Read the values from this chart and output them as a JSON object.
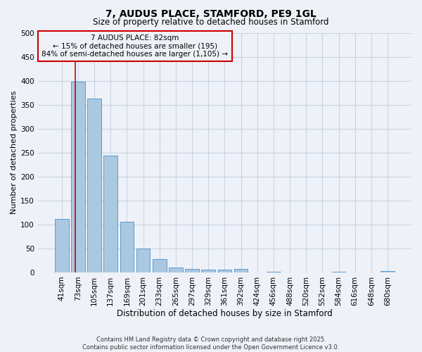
{
  "title": "7, AUDUS PLACE, STAMFORD, PE9 1GL",
  "subtitle": "Size of property relative to detached houses in Stamford",
  "xlabel": "Distribution of detached houses by size in Stamford",
  "ylabel": "Number of detached properties",
  "footer_line1": "Contains HM Land Registry data © Crown copyright and database right 2025.",
  "footer_line2": "Contains public sector information licensed under the Open Government Licence v3.0.",
  "categories": [
    "41sqm",
    "73sqm",
    "105sqm",
    "137sqm",
    "169sqm",
    "201sqm",
    "233sqm",
    "265sqm",
    "297sqm",
    "329sqm",
    "361sqm",
    "392sqm",
    "424sqm",
    "456sqm",
    "488sqm",
    "520sqm",
    "552sqm",
    "584sqm",
    "616sqm",
    "648sqm",
    "680sqm"
  ],
  "values": [
    112,
    398,
    363,
    243,
    105,
    50,
    28,
    10,
    8,
    6,
    6,
    7,
    0,
    1,
    0,
    0,
    0,
    2,
    0,
    0,
    3
  ],
  "bar_color": "#aac8e0",
  "bar_edge_color": "#5b9bd5",
  "ylim": [
    0,
    500
  ],
  "yticks": [
    0,
    50,
    100,
    150,
    200,
    250,
    300,
    350,
    400,
    450,
    500
  ],
  "annotation_text_line1": "7 AUDUS PLACE: 82sqm",
  "annotation_text_line2": "← 15% of detached houses are smaller (195)",
  "annotation_text_line3": "84% of semi-detached houses are larger (1,105) →",
  "annotation_color": "#cc0000",
  "grid_color": "#c8d4e4",
  "background_color": "#eef2f8",
  "title_fontsize": 10,
  "subtitle_fontsize": 8.5,
  "xlabel_fontsize": 8.5,
  "ylabel_fontsize": 8,
  "tick_fontsize": 7.5,
  "ann_fontsize": 7.5,
  "footer_fontsize": 6.0
}
